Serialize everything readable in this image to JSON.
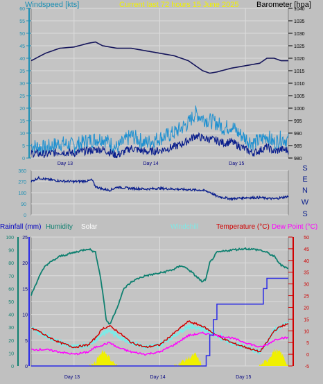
{
  "header": {
    "left_label": "Windspeed [kts]",
    "center_label": "Current last 72 hours 15 June 2025",
    "right_label": "Barometer [hpa]"
  },
  "colors": {
    "background": "#c0c0c0",
    "plot_bg": "#c4c4c4",
    "grid": "#dcdcdc",
    "wind_axis": "#1e90b4",
    "gust": "#1e90d0",
    "avg_wind": "#0a1e8c",
    "barometer": "#14145a",
    "direction": "#0a1e8c",
    "humidity": "#0f8070",
    "solar": "#f0f000",
    "rain": "#2a2ae6",
    "windchill": "#7fe9e6",
    "temperature": "#d00000",
    "dewpoint": "#ff00ff"
  },
  "chart_data": [
    {
      "type": "line",
      "title": "Current last 72 hours 15 June 2025",
      "ylabel_left": "Windspeed [kts]",
      "ylabel_right": "Barometer [hpa]",
      "ylim_left": [
        0,
        60
      ],
      "ylim_right": [
        980,
        1040
      ],
      "left_ticks": [
        "0",
        "5",
        "10",
        "15",
        "20",
        "25",
        "30",
        "35",
        "40",
        "45",
        "50",
        "55",
        "60"
      ],
      "right_ticks": [
        "980",
        "985",
        "990",
        "995",
        "1000",
        "1005",
        "1010",
        "1015",
        "1020",
        "1025",
        "1030",
        "1035",
        "1040"
      ],
      "x_ticks": [
        "Day 13",
        "Day 14",
        "Day 15"
      ],
      "x_tick_positions_hours": [
        12,
        36,
        60
      ],
      "xlim_hours": [
        0,
        72
      ],
      "grid": true,
      "series": [
        {
          "name": "Barometer",
          "axis": "right",
          "x": [
            0,
            4,
            8,
            12,
            16,
            18,
            20,
            24,
            28,
            32,
            36,
            40,
            44,
            48,
            50,
            52,
            56,
            60,
            64,
            66,
            68,
            70,
            72
          ],
          "values": [
            1019,
            1022,
            1024,
            1024.5,
            1026,
            1026.5,
            1025,
            1024,
            1024,
            1023,
            1022,
            1021,
            1019,
            1015,
            1014,
            1014.5,
            1016,
            1017,
            1018,
            1020,
            1020,
            1019,
            1019
          ]
        },
        {
          "name": "Gust",
          "axis": "left",
          "x": [
            0,
            4,
            8,
            12,
            16,
            20,
            24,
            28,
            32,
            36,
            40,
            42,
            44,
            46,
            48,
            50,
            52,
            54,
            56,
            58,
            60,
            62,
            64,
            66,
            68,
            70,
            72
          ],
          "values": [
            5,
            4,
            6,
            5,
            7,
            8,
            4,
            9,
            6,
            8,
            10,
            12,
            14,
            18,
            16,
            15,
            14,
            12,
            13,
            10,
            8,
            6,
            7,
            9,
            6,
            8,
            7
          ]
        },
        {
          "name": "Average",
          "axis": "left",
          "x": [
            0,
            4,
            8,
            12,
            16,
            20,
            24,
            28,
            32,
            36,
            40,
            42,
            44,
            46,
            48,
            50,
            52,
            54,
            56,
            58,
            60,
            62,
            64,
            66,
            68,
            70,
            72
          ],
          "values": [
            2,
            1.5,
            2.5,
            2,
            3,
            3.5,
            1,
            4,
            2.5,
            3,
            4.5,
            5.5,
            7,
            9,
            8,
            7.5,
            7,
            6,
            6.5,
            5,
            3.5,
            2,
            3,
            4.5,
            2.5,
            3.5,
            3
          ]
        }
      ]
    },
    {
      "type": "line",
      "ylim": [
        0,
        360
      ],
      "left_ticks": [
        "0",
        "90",
        "180",
        "270",
        "360"
      ],
      "compass_labels": [
        "S",
        "E",
        "N",
        "W",
        "S"
      ],
      "xlim_hours": [
        0,
        72
      ],
      "series": [
        {
          "name": "Wind direction",
          "x": [
            0,
            2,
            4,
            8,
            12,
            16,
            17,
            18,
            20,
            22,
            24,
            28,
            32,
            36,
            40,
            44,
            48,
            50,
            52,
            56,
            60,
            64,
            68,
            70,
            72
          ],
          "values": [
            270,
            300,
            290,
            275,
            270,
            275,
            285,
            230,
            210,
            200,
            225,
            215,
            210,
            215,
            210,
            205,
            200,
            185,
            150,
            130,
            140,
            140,
            130,
            140,
            150
          ]
        }
      ]
    },
    {
      "type": "line",
      "legend": [
        "Rainfall (mm)",
        "Humidity",
        "Solar",
        "Windchill",
        "Temperature (°C)",
        "Dew Point (°C)"
      ],
      "ylim_humidity": [
        0,
        100
      ],
      "ylim_rain": [
        0,
        25
      ],
      "ylim_temp": [
        -5,
        50
      ],
      "humidity_ticks": [
        "0",
        "10",
        "20",
        "30",
        "40",
        "50",
        "60",
        "70",
        "80",
        "90",
        "100"
      ],
      "rain_ticks": [
        "0",
        "5",
        "10",
        "15",
        "20",
        "25"
      ],
      "temp_ticks": [
        "-5",
        "0",
        "5",
        "10",
        "15",
        "20",
        "25",
        "30",
        "35",
        "40",
        "45",
        "50"
      ],
      "x_ticks": [
        "Day 13",
        "Day 14",
        "Day 15"
      ],
      "xlim_hours": [
        0,
        72
      ],
      "series": [
        {
          "name": "Humidity",
          "axis": "humidity",
          "x": [
            0,
            2,
            4,
            8,
            12,
            16,
            18,
            19,
            20,
            21,
            22,
            24,
            26,
            28,
            30,
            32,
            36,
            40,
            42,
            44,
            46,
            48,
            49,
            50,
            52,
            56,
            60,
            64,
            66,
            68,
            70,
            72
          ],
          "values": [
            55,
            68,
            78,
            85,
            88,
            91,
            88,
            75,
            58,
            36,
            32,
            45,
            60,
            65,
            68,
            70,
            72,
            75,
            78,
            75,
            70,
            65,
            68,
            80,
            88,
            90,
            91,
            90,
            88,
            85,
            78,
            76
          ]
        },
        {
          "name": "Temperature",
          "axis": "temp",
          "x": [
            0,
            2,
            4,
            8,
            12,
            16,
            18,
            20,
            22,
            24,
            28,
            32,
            36,
            40,
            44,
            48,
            52,
            56,
            60,
            64,
            66,
            68,
            70,
            72
          ],
          "values": [
            11,
            10,
            8,
            5,
            3,
            4,
            7,
            11,
            12,
            10,
            5,
            3,
            4,
            9,
            14,
            12,
            8,
            5,
            3,
            1,
            5,
            10,
            12,
            13
          ]
        },
        {
          "name": "Dew Point",
          "axis": "temp",
          "x": [
            0,
            4,
            8,
            12,
            16,
            18,
            20,
            22,
            24,
            28,
            32,
            36,
            40,
            44,
            48,
            52,
            56,
            60,
            64,
            66,
            68,
            70,
            72
          ],
          "values": [
            2,
            2,
            1,
            0,
            1,
            3,
            4,
            5,
            3,
            1,
            0,
            1,
            4,
            8,
            9,
            8,
            7,
            5,
            3,
            4,
            6,
            7,
            7
          ]
        },
        {
          "name": "Windchill",
          "axis": "temp",
          "x": [
            0,
            4,
            8,
            12,
            16,
            18,
            20,
            22,
            24,
            28,
            32,
            36,
            40,
            44,
            48,
            52,
            56,
            60,
            64,
            66,
            68,
            70,
            72
          ],
          "values": [
            11,
            8,
            5,
            3,
            4,
            6,
            9,
            10,
            8,
            5,
            3,
            4,
            8,
            12,
            11,
            8,
            5,
            3,
            1,
            5,
            10,
            12,
            13
          ]
        },
        {
          "name": "Rainfall",
          "axis": "rain",
          "x": [
            0,
            4,
            8,
            12,
            16,
            20,
            24,
            28,
            32,
            36,
            40,
            44,
            48,
            49,
            50,
            51,
            52,
            56,
            60,
            64,
            65,
            66,
            72
          ],
          "values": [
            0,
            0,
            0,
            0,
            0,
            0,
            0,
            0,
            0,
            0,
            0,
            0,
            0,
            2,
            6,
            9,
            12,
            12,
            12,
            12,
            15,
            17,
            17
          ]
        },
        {
          "name": "Solar",
          "axis": "humidity",
          "x": [
            0,
            8,
            16,
            18,
            19,
            20,
            21,
            22,
            24,
            32,
            40,
            42,
            44,
            46,
            47,
            48,
            56,
            64,
            66,
            68,
            70,
            71,
            72
          ],
          "values": [
            0,
            0,
            0,
            2,
            8,
            12,
            10,
            6,
            0,
            0,
            0,
            3,
            6,
            9,
            4,
            0,
            0,
            0,
            4,
            12,
            10,
            5,
            0
          ]
        }
      ]
    }
  ]
}
